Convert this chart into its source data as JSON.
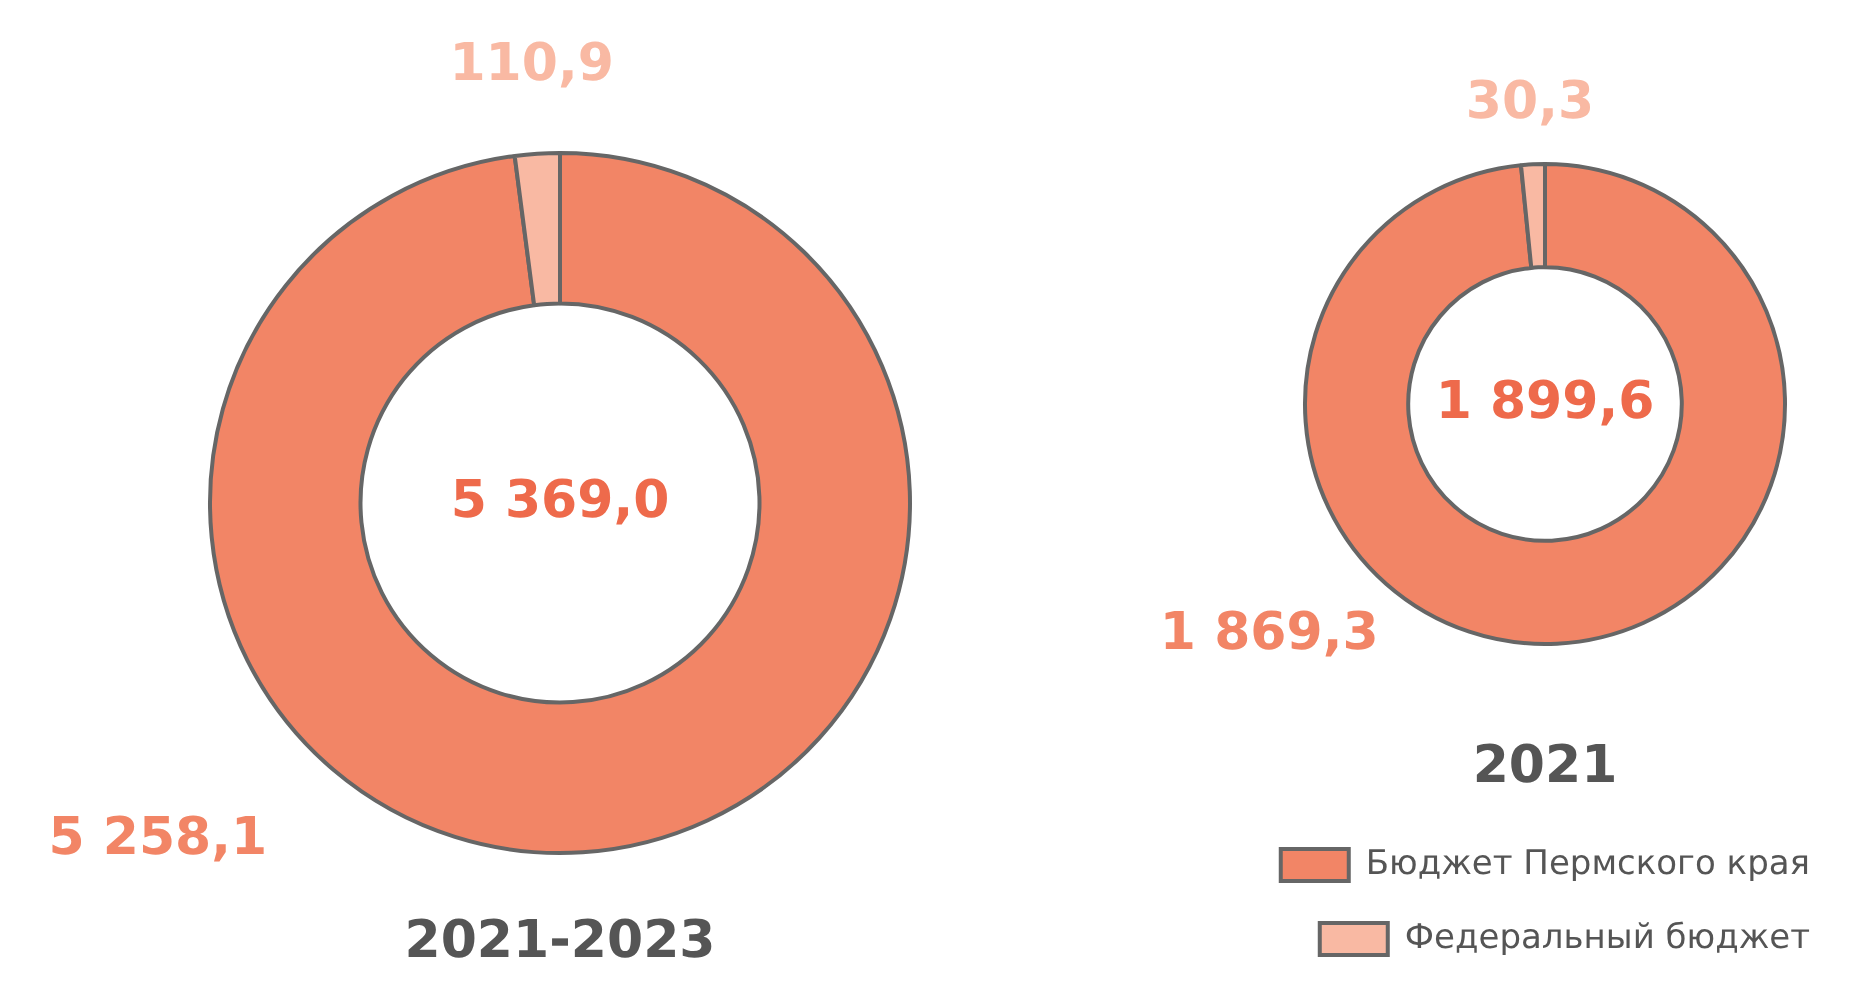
{
  "chart_data": [
    {
      "type": "donut",
      "title": "2021-2023",
      "values": [
        5258.1,
        110.9
      ],
      "colors": [
        "#f28566",
        "#f9b9a3"
      ],
      "value_labels": [
        "5 258,1",
        "110,9"
      ],
      "annotations": [
        "5 369,0"
      ],
      "legend": false
    },
    {
      "type": "donut",
      "title": "2021",
      "categories": [
        "Бюджет Пермского края",
        "Федеральный бюджет"
      ],
      "values": [
        1869.3,
        30.3
      ],
      "colors": [
        "#f28566",
        "#f9b9a3"
      ],
      "value_labels": [
        "1 869,3",
        "30,3"
      ],
      "annotations": [
        "1 899,6"
      ],
      "legend": "bottom right"
    }
  ]
}
